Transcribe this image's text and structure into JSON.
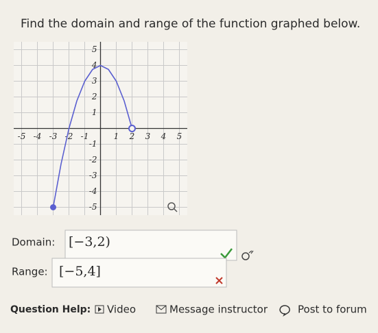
{
  "header": {
    "title": "Find the domain and range of the function graphed below."
  },
  "graph": {
    "type": "line",
    "xlim": [
      -5.5,
      5.5
    ],
    "ylim": [
      -5.5,
      5.5
    ],
    "xticks": [
      -5,
      -4,
      -3,
      -2,
      -1,
      1,
      2,
      3,
      4,
      5
    ],
    "yticks": [
      -5,
      -4,
      -3,
      -2,
      -1,
      1,
      2,
      3,
      4,
      5
    ],
    "grid": true,
    "color": "#5a5fd0",
    "x": [
      -3,
      -2.5,
      -2,
      -1.5,
      -1,
      -0.5,
      0,
      0.5,
      1,
      1.5,
      2
    ],
    "values": [
      -5,
      -2.25,
      0,
      1.75,
      3,
      3.75,
      4,
      3.75,
      3,
      1.75,
      0
    ]
  },
  "domain": {
    "label": "Domain:",
    "answer": "[−3,2)"
  },
  "range": {
    "label": "Range:",
    "answer": "[−5,4]"
  },
  "help": {
    "label": "Question Help:",
    "video": "Video",
    "message": "Message instructor",
    "forum": "Post to forum"
  }
}
